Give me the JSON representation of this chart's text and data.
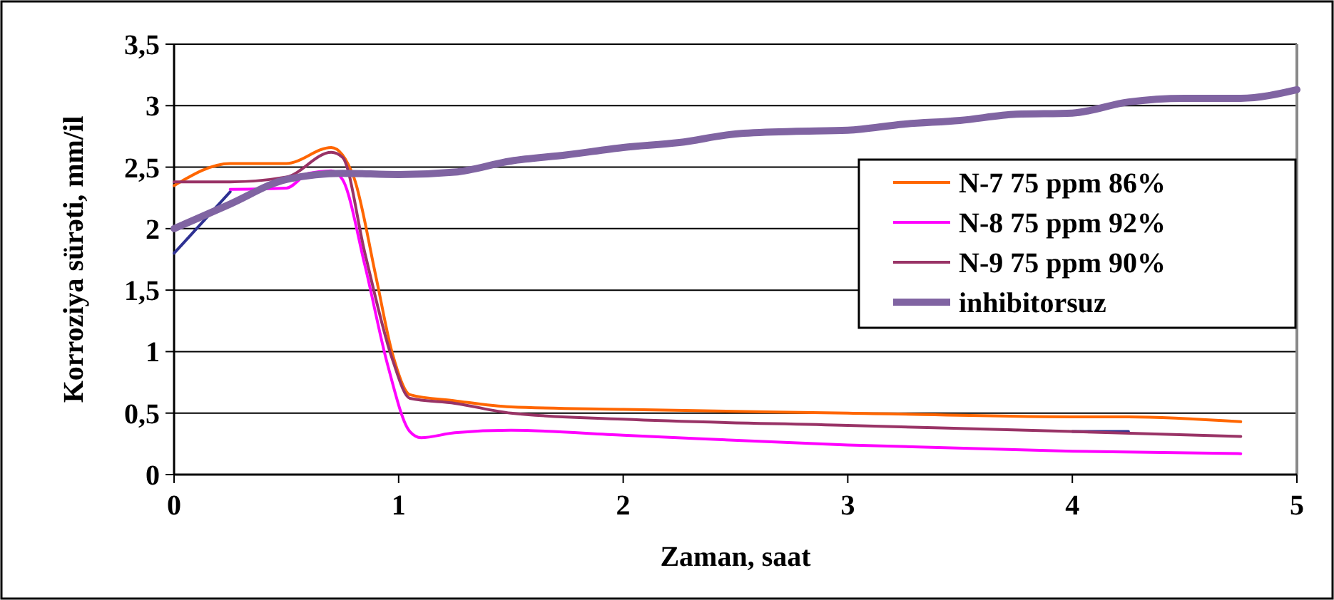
{
  "chart_data": {
    "type": "line",
    "xlabel": "Zaman, saat",
    "ylabel": "Korroziya sürəti, mm/il",
    "xlim": [
      0,
      5
    ],
    "xticks": [
      0,
      1,
      2,
      3,
      4,
      5
    ],
    "ylim": [
      0,
      3.5
    ],
    "yticks": [
      0,
      {
        "value": 0.5,
        "label": "0,5"
      },
      1,
      {
        "value": 1.5,
        "label": "1,5"
      },
      2,
      {
        "value": 2.5,
        "label": "2,5"
      },
      3,
      {
        "value": 3.5,
        "label": "3,5"
      }
    ],
    "grid": "y",
    "legend": "right",
    "line_style": "solid",
    "series": [
      {
        "color": "#2e3192",
        "x": [
          0,
          0.25,
          2,
          4,
          4.25
        ],
        "values": [
          1.8,
          2.3,
          null,
          0.35,
          0.35
        ]
      },
      {
        "name": "N-7 75 ppm 86%",
        "color": "#ff6600",
        "x": [
          0,
          0.25,
          0.5,
          0.7,
          0.8,
          0.9,
          0.97,
          1.05,
          1.25,
          1.5,
          2,
          3,
          4,
          4.25,
          4.75
        ],
        "values": [
          2.35,
          2.53,
          2.53,
          2.66,
          2.42,
          1.6,
          1.0,
          0.65,
          0.6,
          0.55,
          0.53,
          0.5,
          0.47,
          0.47,
          0.43
        ]
      },
      {
        "name": "N-8 75 ppm 92%",
        "color": "#ff00ff",
        "x": [
          0.25,
          0.5,
          0.6,
          0.7,
          0.75,
          0.85,
          0.95,
          1.05,
          1.1,
          1.25,
          1.5,
          2,
          3,
          4,
          4.75
        ],
        "values": [
          2.32,
          2.33,
          2.45,
          2.47,
          2.4,
          1.7,
          0.9,
          0.35,
          0.3,
          0.34,
          0.36,
          0.32,
          0.24,
          0.19,
          0.17
        ]
      },
      {
        "name": "N-9 75 ppm 90%",
        "color": "#993366",
        "x": [
          0,
          0.25,
          0.5,
          0.7,
          0.75,
          0.85,
          0.97,
          1.05,
          1.25,
          1.5,
          2,
          3,
          4,
          4.75
        ],
        "values": [
          2.38,
          2.38,
          2.42,
          2.62,
          2.58,
          1.8,
          0.95,
          0.62,
          0.58,
          0.5,
          0.45,
          0.4,
          0.35,
          0.31
        ]
      },
      {
        "name": "inhibitorsuz",
        "color": "#8064a2",
        "x": [
          0,
          0.25,
          0.5,
          0.75,
          1,
          1.25,
          1.5,
          1.75,
          2,
          2.25,
          2.5,
          2.75,
          3,
          3.25,
          3.5,
          3.75,
          4,
          4.25,
          4.5,
          4.75,
          5
        ],
        "values": [
          2.0,
          2.2,
          2.4,
          2.45,
          2.44,
          2.46,
          2.55,
          2.6,
          2.66,
          2.7,
          2.77,
          2.79,
          2.8,
          2.85,
          2.88,
          2.93,
          2.94,
          3.03,
          3.06,
          3.06,
          3.13
        ]
      }
    ]
  }
}
